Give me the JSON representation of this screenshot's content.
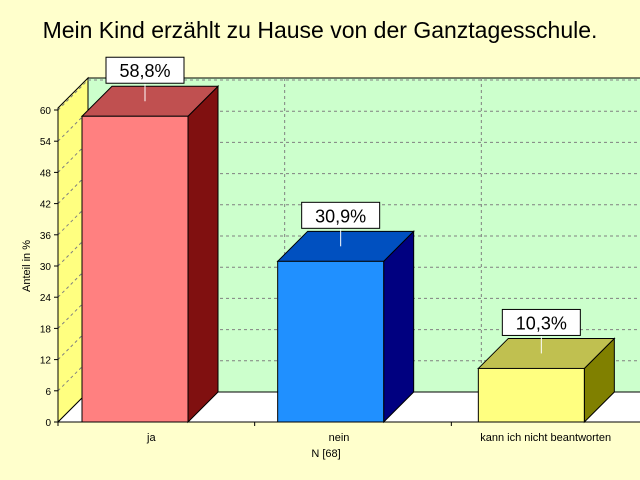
{
  "chart_data": {
    "type": "bar",
    "title": "Mein Kind erzählt zu Hause von der Ganztagesschule.",
    "categories": [
      "ja",
      "nein",
      "kann ich nicht beantworten"
    ],
    "values": [
      58.8,
      30.9,
      10.3
    ],
    "data_labels": [
      "58,8%",
      "30,9%",
      "10,3%"
    ],
    "ylabel": "Anteil in %",
    "xlabel": "N [68]",
    "ylim": [
      0,
      60
    ],
    "yticks": [
      0,
      6,
      12,
      18,
      24,
      30,
      36,
      42,
      48,
      54,
      60
    ],
    "grid": true,
    "three_d": true,
    "colors": {
      "plot_wall": "#ccffcc",
      "side_wall": "#ffff80",
      "floor": "#ffffff",
      "background": "#ffffcc",
      "gridline": "#808080",
      "bars": [
        {
          "front": "#ff8080",
          "top": "#c05050",
          "side": "#801010"
        },
        {
          "front": "#2090ff",
          "top": "#0050c0",
          "side": "#000080"
        },
        {
          "front": "#ffff80",
          "top": "#c0c050",
          "side": "#808000"
        }
      ]
    }
  }
}
